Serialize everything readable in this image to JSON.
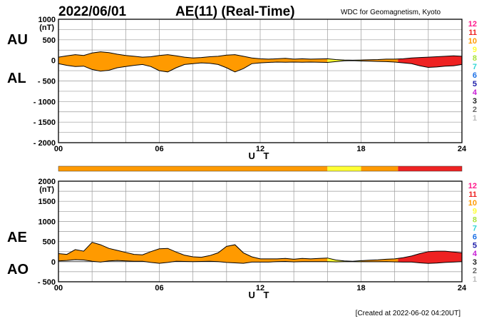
{
  "header": {
    "date": "2022/06/01",
    "title": "AE(11) (Real-Time)",
    "source": "WDC for Geomagnetism, Kyoto",
    "created": "[Created at 2022-06-02 04:20UT]"
  },
  "station_count_legend": [
    "12",
    "11",
    "10",
    "9",
    "8",
    "7",
    "6",
    "5",
    "4",
    "3",
    "2",
    "1"
  ],
  "station_colors": {
    "12": "#ff1a8c",
    "11": "#ee2222",
    "10": "#ff9a00",
    "9": "#ffff33",
    "8": "#a8e23a",
    "7": "#33d6d6",
    "6": "#1a6fe6",
    "5": "#1a1aa8",
    "4": "#c81ed6",
    "3": "#222222",
    "2": "#666666",
    "1": "#bbbbbb"
  },
  "chart_data": [
    {
      "type": "area",
      "id": "au-al",
      "side_labels": [
        "AU",
        "AL"
      ],
      "unit_label": "(nT)",
      "xlabel": "U T",
      "xlim": [
        0,
        24
      ],
      "ylim": [
        -2000,
        1000
      ],
      "x_ticks": [
        "00",
        "06",
        "12",
        "18",
        "24"
      ],
      "y_ticks": [
        "1000",
        "500",
        "0",
        "- 500",
        "- 1000",
        "- 1500",
        "- 2000"
      ],
      "x": [
        0,
        0.5,
        1,
        1.5,
        2,
        2.5,
        3,
        3.5,
        4,
        4.5,
        5,
        5.5,
        6,
        6.5,
        7,
        7.5,
        8,
        8.5,
        9,
        9.5,
        10,
        10.5,
        11,
        11.5,
        12,
        12.5,
        13,
        13.5,
        14,
        14.5,
        15,
        15.5,
        16,
        16.5,
        17,
        17.5,
        18,
        18.5,
        19,
        19.5,
        20,
        20.5,
        21,
        21.5,
        22,
        22.5,
        23,
        23.5,
        24
      ],
      "series": [
        {
          "name": "AU",
          "values": [
            80,
            110,
            140,
            120,
            180,
            210,
            190,
            150,
            120,
            100,
            80,
            90,
            120,
            140,
            110,
            80,
            60,
            70,
            90,
            100,
            130,
            140,
            100,
            60,
            40,
            30,
            40,
            50,
            30,
            40,
            30,
            35,
            40,
            20,
            10,
            5,
            10,
            15,
            20,
            30,
            30,
            40,
            60,
            70,
            80,
            90,
            100,
            110,
            100
          ]
        },
        {
          "name": "AL",
          "values": [
            -80,
            -120,
            -150,
            -140,
            -220,
            -260,
            -240,
            -180,
            -150,
            -120,
            -100,
            -150,
            -250,
            -280,
            -180,
            -100,
            -80,
            -60,
            -70,
            -100,
            -180,
            -280,
            -200,
            -80,
            -60,
            -50,
            -40,
            -45,
            -40,
            -45,
            -40,
            -45,
            -50,
            -30,
            -10,
            -5,
            -15,
            -20,
            -25,
            -30,
            -40,
            -60,
            -80,
            -130,
            -170,
            -160,
            -140,
            -130,
            -100
          ]
        }
      ],
      "color_by_hour_window": [
        {
          "from": 0,
          "to": 16,
          "stations": "10"
        },
        {
          "from": 16,
          "to": 18,
          "stations": "9"
        },
        {
          "from": 18,
          "to": 20.2,
          "stations": "10"
        },
        {
          "from": 20.2,
          "to": 24,
          "stations": "11"
        }
      ]
    },
    {
      "type": "area",
      "id": "ae-ao",
      "side_labels": [
        "AE",
        "AO"
      ],
      "unit_label": "(nT)",
      "xlabel": "U T",
      "xlim": [
        0,
        24
      ],
      "ylim": [
        -500,
        2000
      ],
      "x_ticks": [
        "00",
        "06",
        "12",
        "18",
        "24"
      ],
      "y_ticks": [
        "2000",
        "1500",
        "1000",
        "500",
        "0",
        "- 500"
      ],
      "x": [
        0,
        0.5,
        1,
        1.5,
        2,
        2.5,
        3,
        3.5,
        4,
        4.5,
        5,
        5.5,
        6,
        6.5,
        7,
        7.5,
        8,
        8.5,
        9,
        9.5,
        10,
        10.5,
        11,
        11.5,
        12,
        12.5,
        13,
        13.5,
        14,
        14.5,
        15,
        15.5,
        16,
        16.5,
        17,
        17.5,
        18,
        18.5,
        19,
        19.5,
        20,
        20.5,
        21,
        21.5,
        22,
        22.5,
        23,
        23.5,
        24
      ],
      "series": [
        {
          "name": "AE",
          "values": [
            200,
            180,
            300,
            260,
            480,
            420,
            330,
            280,
            230,
            180,
            170,
            250,
            320,
            330,
            240,
            160,
            120,
            110,
            150,
            220,
            380,
            420,
            220,
            120,
            70,
            70,
            70,
            80,
            60,
            80,
            70,
            80,
            90,
            40,
            20,
            10,
            25,
            35,
            45,
            60,
            70,
            100,
            140,
            200,
            250,
            260,
            260,
            240,
            220
          ]
        },
        {
          "name": "AO",
          "values": [
            20,
            30,
            50,
            40,
            10,
            -10,
            20,
            30,
            20,
            10,
            10,
            -20,
            -40,
            -20,
            10,
            5,
            0,
            5,
            10,
            0,
            -20,
            -30,
            -40,
            -10,
            -10,
            -10,
            0,
            5,
            -5,
            0,
            0,
            0,
            0,
            -5,
            0,
            0,
            -2,
            -2,
            -2,
            0,
            -5,
            -10,
            -10,
            -30,
            -45,
            -35,
            -20,
            -10,
            0
          ]
        }
      ],
      "color_by_hour_window": [
        {
          "from": 0,
          "to": 16,
          "stations": "10"
        },
        {
          "from": 16,
          "to": 18,
          "stations": "9"
        },
        {
          "from": 18,
          "to": 20.2,
          "stations": "10"
        },
        {
          "from": 20.2,
          "to": 24,
          "stations": "11"
        }
      ]
    }
  ],
  "station_bar": [
    {
      "from": 0,
      "to": 16,
      "stations": "10"
    },
    {
      "from": 16,
      "to": 18,
      "stations": "9"
    },
    {
      "from": 18,
      "to": 20.2,
      "stations": "10"
    },
    {
      "from": 20.2,
      "to": 24,
      "stations": "11"
    }
  ]
}
